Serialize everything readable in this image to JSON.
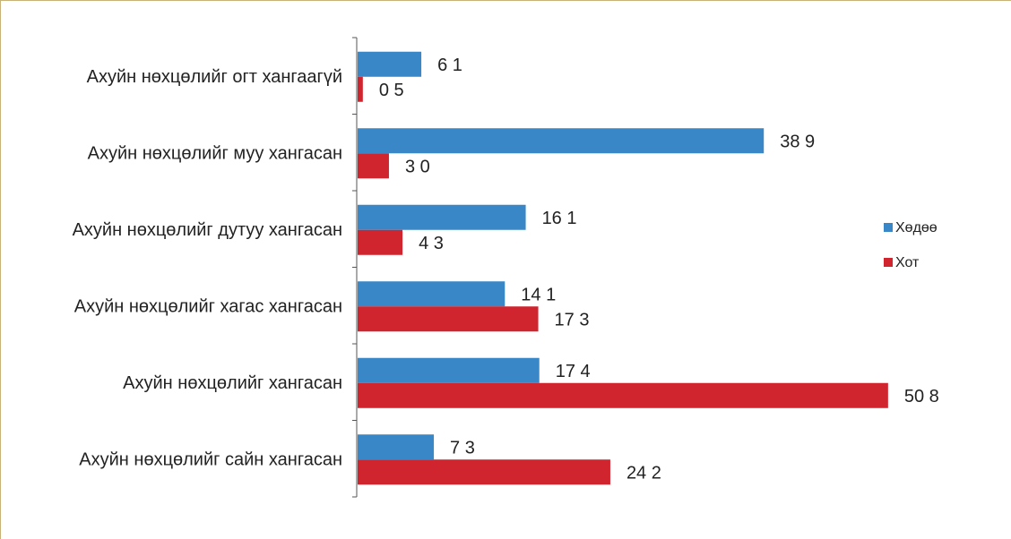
{
  "chart_data": {
    "type": "bar",
    "orientation": "horizontal",
    "categories": [
      "Ахуйн нөхцөлийг огт хангаагүй",
      "Ахуйн нөхцөлийг муу хангасан",
      "Ахуйн нөхцөлийг дутуу хангасан",
      "Ахуйн нөхцөлийг хагас хангасан",
      "Ахуйн нөхцөлийг хангасан",
      "Ахуйн нөхцөлийг сайн хангасан"
    ],
    "series": [
      {
        "name": "Хөдөө",
        "color": "#3a87c8",
        "values": [
          6.1,
          38.9,
          16.1,
          14.1,
          17.4,
          7.3
        ],
        "labels": [
          "6 1",
          "38 9",
          "16 1",
          "14 1",
          "17 4",
          "7 3"
        ]
      },
      {
        "name": "Хот",
        "color": "#d0252e",
        "values": [
          0.5,
          3.0,
          4.3,
          17.3,
          50.8,
          24.2
        ],
        "labels": [
          "0 5",
          "3 0",
          "4 3",
          "17 3",
          "50 8",
          "24 2"
        ]
      }
    ],
    "xlim": [
      0,
      51.5
    ],
    "grid": false,
    "legend_position": "right"
  }
}
